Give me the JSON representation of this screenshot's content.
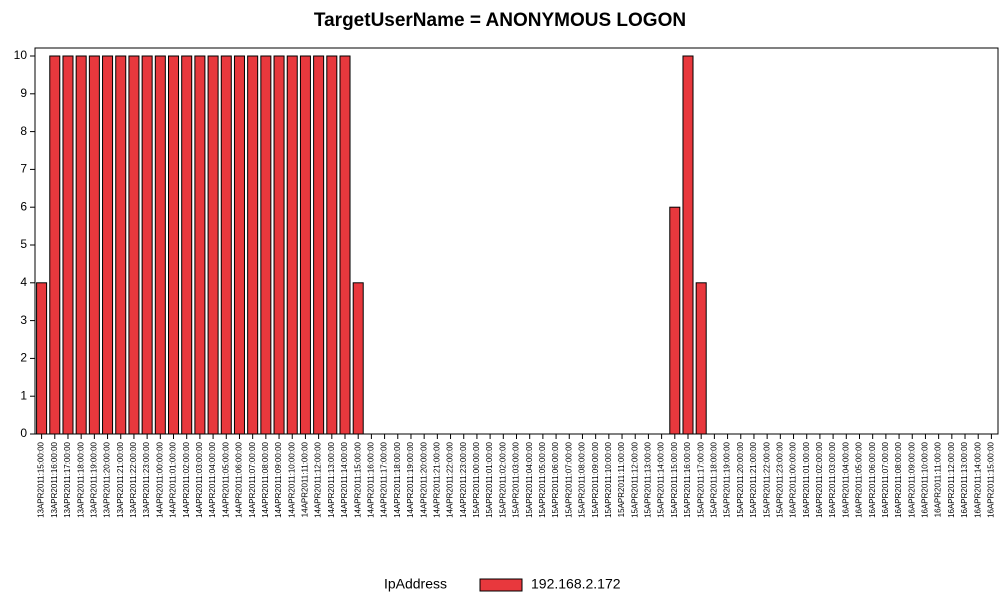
{
  "chart_data": {
    "type": "bar",
    "title": "TargetUserName = ANONYMOUS LOGON",
    "categories": [
      "13APR2011:15:00:00",
      "13APR2011:16:00:00",
      "13APR2011:17:00:00",
      "13APR2011:18:00:00",
      "13APR2011:19:00:00",
      "13APR2011:20:00:00",
      "13APR2011:21:00:00",
      "13APR2011:22:00:00",
      "13APR2011:23:00:00",
      "14APR2011:00:00:00",
      "14APR2011:01:00:00",
      "14APR2011:02:00:00",
      "14APR2011:03:00:00",
      "14APR2011:04:00:00",
      "14APR2011:05:00:00",
      "14APR2011:06:00:00",
      "14APR2011:07:00:00",
      "14APR2011:08:00:00",
      "14APR2011:09:00:00",
      "14APR2011:10:00:00",
      "14APR2011:11:00:00",
      "14APR2011:12:00:00",
      "14APR2011:13:00:00",
      "14APR2011:14:00:00",
      "14APR2011:15:00:00",
      "14APR2011:16:00:00",
      "14APR2011:17:00:00",
      "14APR2011:18:00:00",
      "14APR2011:19:00:00",
      "14APR2011:20:00:00",
      "14APR2011:21:00:00",
      "14APR2011:22:00:00",
      "14APR2011:23:00:00",
      "15APR2011:00:00:00",
      "15APR2011:01:00:00",
      "15APR2011:02:00:00",
      "15APR2011:03:00:00",
      "15APR2011:04:00:00",
      "15APR2011:05:00:00",
      "15APR2011:06:00:00",
      "15APR2011:07:00:00",
      "15APR2011:08:00:00",
      "15APR2011:09:00:00",
      "15APR2011:10:00:00",
      "15APR2011:11:00:00",
      "15APR2011:12:00:00",
      "15APR2011:13:00:00",
      "15APR2011:14:00:00",
      "15APR2011:15:00:00",
      "15APR2011:16:00:00",
      "15APR2011:17:00:00",
      "15APR2011:18:00:00",
      "15APR2011:19:00:00",
      "15APR2011:20:00:00",
      "15APR2011:21:00:00",
      "15APR2011:22:00:00",
      "15APR2011:23:00:00",
      "16APR2011:00:00:00",
      "16APR2011:01:00:00",
      "16APR2011:02:00:00",
      "16APR2011:03:00:00",
      "16APR2011:04:00:00",
      "16APR2011:05:00:00",
      "16APR2011:06:00:00",
      "16APR2011:07:00:00",
      "16APR2011:08:00:00",
      "16APR2011:09:00:00",
      "16APR2011:10:00:00",
      "16APR2011:11:00:00",
      "16APR2011:12:00:00",
      "16APR2011:13:00:00",
      "16APR2011:14:00:00",
      "16APR2011:15:00:00"
    ],
    "legend_title": "IpAddress",
    "series": [
      {
        "name": "192.168.2.172",
        "color": "#e8383d",
        "values": [
          4,
          10,
          10,
          10,
          10,
          10,
          10,
          10,
          10,
          10,
          10,
          10,
          10,
          10,
          10,
          10,
          10,
          10,
          10,
          10,
          10,
          10,
          10,
          10,
          4,
          0,
          0,
          0,
          0,
          0,
          0,
          0,
          0,
          0,
          0,
          0,
          0,
          0,
          0,
          0,
          0,
          0,
          0,
          0,
          0,
          0,
          0,
          0,
          6,
          10,
          4,
          0,
          0,
          0,
          0,
          0,
          0,
          0,
          0,
          0,
          0,
          0,
          0,
          0,
          0,
          0,
          0,
          0,
          0,
          0,
          0,
          0,
          0
        ]
      }
    ],
    "ylim": [
      0,
      10
    ],
    "yticks": [
      0,
      1,
      2,
      3,
      4,
      5,
      6,
      7,
      8,
      9,
      10
    ],
    "grid": false
  }
}
